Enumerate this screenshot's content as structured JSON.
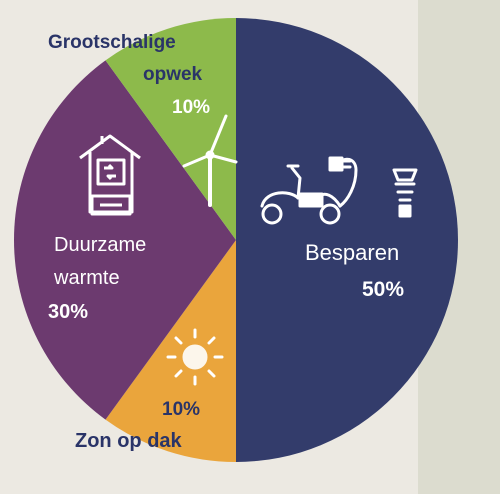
{
  "chart_data": {
    "type": "pie",
    "title": "",
    "legend": "none",
    "slices": [
      {
        "label": "Besparen",
        "value": 50,
        "pct_label": "50%",
        "color": "#333c6b",
        "icon": "scooter-plug-bulb-icon"
      },
      {
        "label": "Zon op dak",
        "value": 10,
        "pct_label": "10%",
        "color": "#eaa53c",
        "icon": "sun-icon"
      },
      {
        "label": "Duurzame warmte",
        "label_lines": [
          "Duurzame",
          "warmte"
        ],
        "value": 30,
        "pct_label": "30%",
        "color": "#6c3a6f",
        "icon": "house-heatpump-icon"
      },
      {
        "label": "Grootschalige opwek",
        "label_lines": [
          "Grootschalige",
          "opwek"
        ],
        "value": 10,
        "pct_label": "10%",
        "color": "#8dba4b",
        "icon": "wind-turbine-icon"
      }
    ]
  }
}
